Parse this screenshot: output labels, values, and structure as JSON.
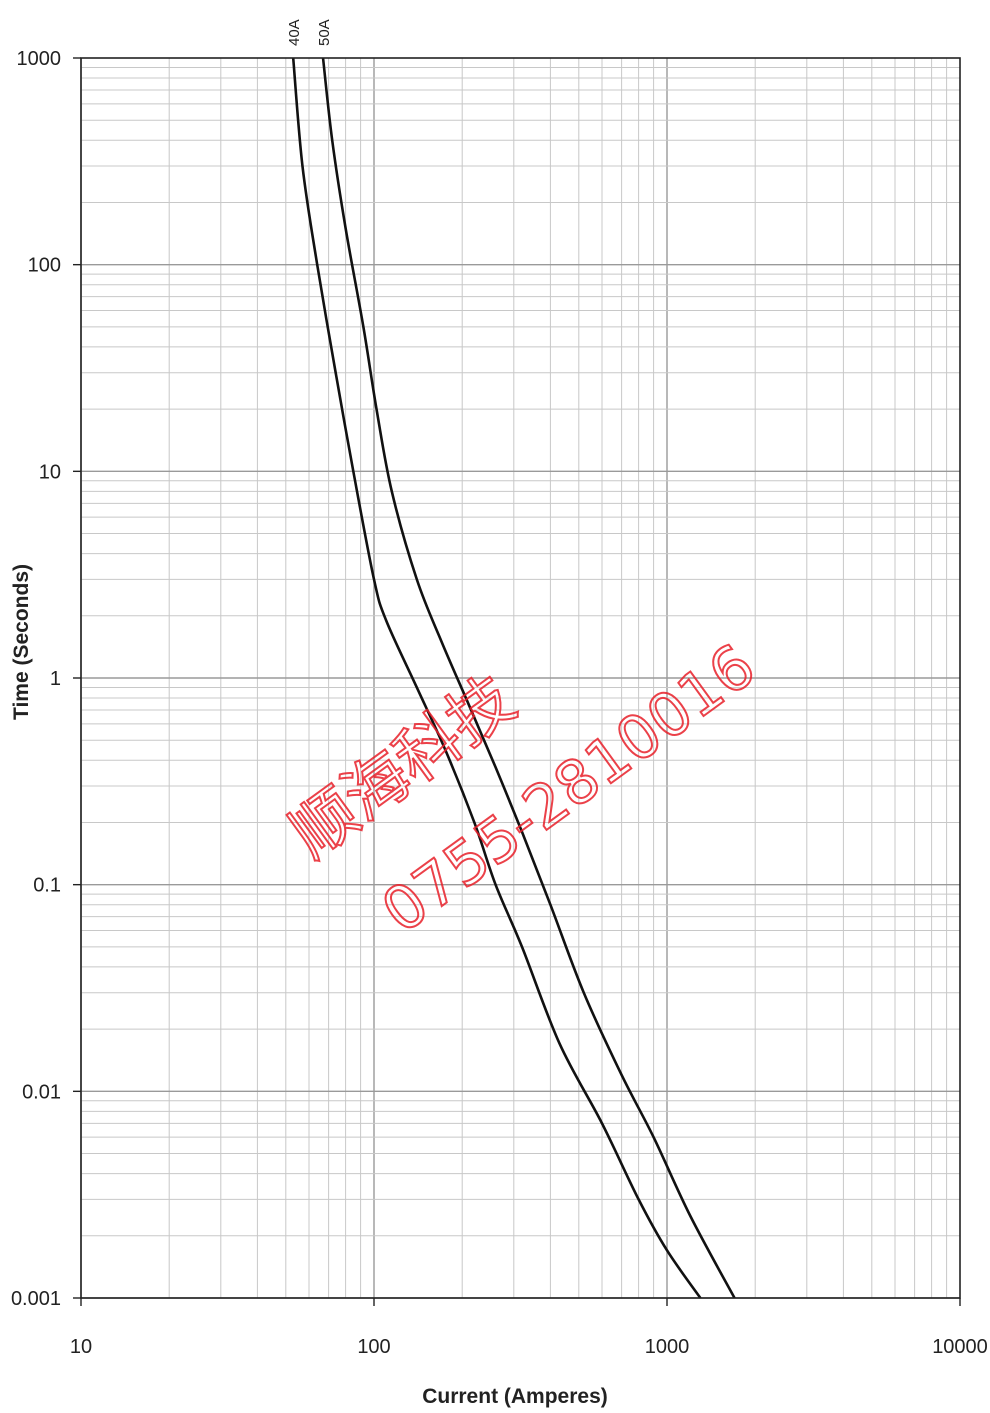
{
  "chart_data": {
    "type": "line",
    "title": "",
    "xlabel": "Current (Amperes)",
    "ylabel": "Time (Seconds)",
    "x_scale": "log",
    "y_scale": "log",
    "xlim": [
      10,
      10000
    ],
    "ylim": [
      0.001,
      1000
    ],
    "x_ticks": [
      10,
      100,
      1000,
      10000
    ],
    "x_tick_labels": [
      "10",
      "100",
      "1000",
      "10000"
    ],
    "y_ticks": [
      1000,
      100,
      10,
      1,
      0.1,
      0.01,
      0.001
    ],
    "y_tick_labels": [
      "1000",
      "100",
      "10",
      "1",
      "0.1",
      "0.01",
      "0.001"
    ],
    "grid": true,
    "series": [
      {
        "name": "40A",
        "points": [
          [
            53,
            1000
          ],
          [
            57,
            300
          ],
          [
            64,
            100
          ],
          [
            74,
            30
          ],
          [
            85,
            10
          ],
          [
            100,
            3
          ],
          [
            110,
            1.9
          ],
          [
            140,
            0.9
          ],
          [
            175,
            0.45
          ],
          [
            220,
            0.2
          ],
          [
            260,
            0.1
          ],
          [
            320,
            0.05
          ],
          [
            430,
            0.017
          ],
          [
            600,
            0.007
          ],
          [
            800,
            0.003
          ],
          [
            1000,
            0.0017
          ],
          [
            1300,
            0.001
          ]
        ]
      },
      {
        "name": "50A",
        "points": [
          [
            67,
            1000
          ],
          [
            72,
            400
          ],
          [
            80,
            150
          ],
          [
            92,
            50
          ],
          [
            102,
            20
          ],
          [
            115,
            8
          ],
          [
            140,
            3
          ],
          [
            170,
            1.5
          ],
          [
            210,
            0.75
          ],
          [
            260,
            0.37
          ],
          [
            320,
            0.18
          ],
          [
            400,
            0.08
          ],
          [
            520,
            0.03
          ],
          [
            700,
            0.012
          ],
          [
            900,
            0.006
          ],
          [
            1200,
            0.0025
          ],
          [
            1700,
            0.001
          ]
        ]
      }
    ]
  },
  "watermark": {
    "line1": "顺海科技",
    "line2": "0755-2810016",
    "color": "#e8202a"
  },
  "colors": {
    "major_grid": "#9a9a9a",
    "minor_grid": "#c8c8c8",
    "curve": "#111111",
    "frame": "#222222"
  }
}
